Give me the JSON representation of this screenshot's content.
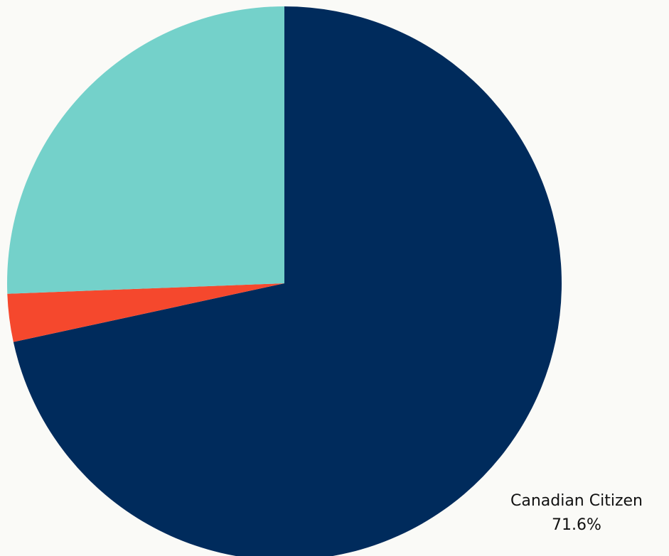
{
  "chart_data": {
    "type": "pie",
    "title": "",
    "slices": [
      {
        "label": "Canadian Citizen",
        "value": 71.6,
        "value_label": "71.6%",
        "color": "#002b5c"
      },
      {
        "label": "",
        "value": 2.8,
        "value_label": "",
        "color": "#f5482d"
      },
      {
        "label": "",
        "value": 25.6,
        "value_label": "",
        "color": "#74d1ca"
      }
    ],
    "start_angle": "12 o'clock",
    "direction": "clockwise"
  }
}
